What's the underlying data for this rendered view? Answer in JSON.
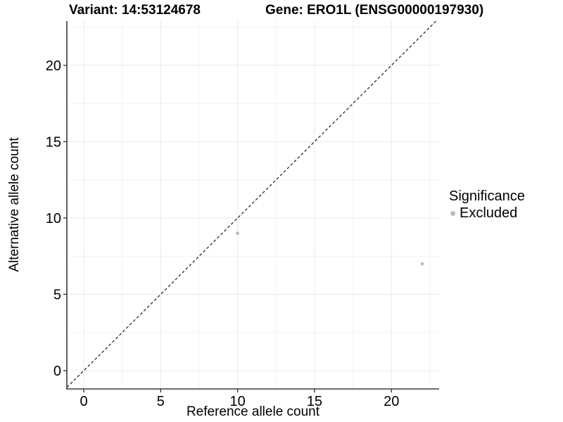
{
  "page": {
    "background": "#ffffff"
  },
  "header": {
    "variant_title": "Variant: 14:53124678",
    "gene_title": "Gene: ERO1L (ENSG00000197930)"
  },
  "chart_data": {
    "type": "scatter",
    "title_left": "Variant: 14:53124678",
    "title_right": "Gene: ERO1L (ENSG00000197930)",
    "xlabel": "Reference allele count",
    "ylabel": "Alternative allele count",
    "xlim": [
      -1.1,
      23.1
    ],
    "ylim": [
      -1.2,
      22.9
    ],
    "xticks": [
      0,
      5,
      10,
      15,
      20
    ],
    "yticks": [
      0,
      5,
      10,
      15,
      20
    ],
    "x_minor_gridlines": [
      2.5,
      7.5,
      12.5,
      17.5,
      22.5
    ],
    "y_minor_gridlines": [
      2.5,
      7.5,
      12.5,
      17.5,
      22.5
    ],
    "grid": "on",
    "series": [
      {
        "name": "Excluded",
        "marker": "circle",
        "color": "#bcbcbc",
        "points": [
          {
            "x": 10,
            "y": 9
          },
          {
            "x": 22,
            "y": 7
          }
        ]
      }
    ],
    "reference_line": {
      "kind": "identity",
      "slope": 1,
      "intercept": 0,
      "linestyle": "dashed",
      "color": "#1a1a1a"
    },
    "legend": {
      "title": "Significance",
      "position": "right",
      "items": [
        {
          "label": "Excluded",
          "color": "#bcbcbc",
          "marker": "circle"
        }
      ]
    },
    "style": {
      "axis_line_color": "#3a3a3a",
      "tick_color": "#3a3a3a",
      "tick_label_color": "#000000",
      "major_grid_color": "#e8e8e8",
      "minor_grid_color": "#f2f2f2",
      "point_color": "#bcbcbc"
    }
  }
}
